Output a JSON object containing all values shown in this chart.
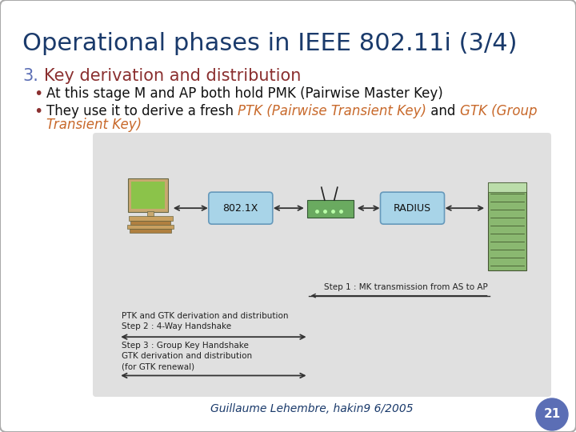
{
  "title": "Operational phases in IEEE 802.11i (3/4)",
  "title_color": "#1a3a6b",
  "title_fontsize": 22,
  "bg_color": "#ffffff",
  "slide_border_color": "#aaaaaa",
  "section_number": "3.",
  "section_color": "#8b3030",
  "section_text": "Key derivation and distribution",
  "section_fontsize": 15,
  "section_num_color": "#5b6eb5",
  "bullet_color": "#8b3030",
  "bullet1": "At this stage M and AP both hold PMK (Pairwise Master Key)",
  "bullet2_before": "They use it to derive a fresh ",
  "bullet2_ptk": "PTK (Pairwise Transient Key)",
  "bullet2_mid": " and ",
  "bullet2_gtk1": "GTK (Group",
  "bullet2_gtk2": "Transient Key)",
  "ptk_color": "#c8692b",
  "gtk_color": "#c8692b",
  "bullet_fontsize": 12,
  "diagram_bg": "#e0e0e0",
  "footer_text": "Guillaume Lehembre, hakin9 6/2005",
  "footer_color": "#1a3a6b",
  "page_num": "21",
  "page_circle_color": "#5b6eb5",
  "step1_text": "Step 1 : MK transmission from AS to AP",
  "step2_text1": "Step 2 : 4-Way Handshake",
  "step2_text2": "PTK and GTK derivation and distribution",
  "step3_text1": "Step 3 : Group Key Handshake",
  "step3_text2": "GTK derivation and distribution",
  "step3_text3": "(for GTK renewal)"
}
